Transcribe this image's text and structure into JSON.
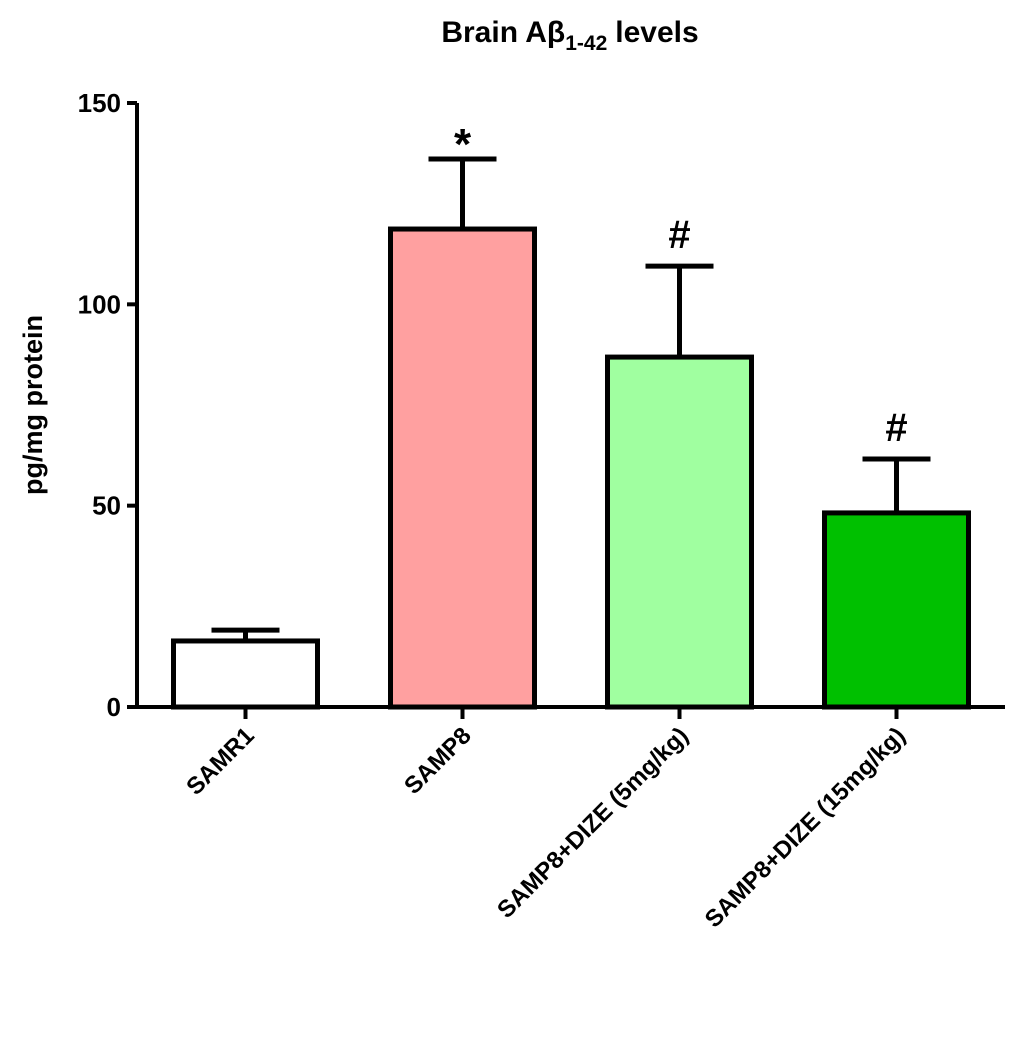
{
  "chart_data": {
    "type": "bar",
    "title": {
      "text": "Brain Aβ",
      "subscript": "1-42",
      "rest": "levels"
    },
    "y_label": "pg/mg protein",
    "categories": [
      "SAMR1",
      "SAMP8",
      "SAMP8+DIZE (5mg/kg)",
      "SAMP8+DIZE (15mg/kg)"
    ],
    "values": [
      16.4,
      118.7,
      86.9,
      48.2
    ],
    "errors": [
      2.7,
      17.4,
      22.6,
      13.4
    ],
    "colors": [
      "#ffffff",
      "#ffa0a0",
      "#a0ffa0",
      "#00c000"
    ],
    "annotations": [
      null,
      "*",
      "#",
      "#"
    ],
    "ylim": [
      0,
      150
    ],
    "yticks": [
      0,
      50,
      100,
      150
    ]
  }
}
